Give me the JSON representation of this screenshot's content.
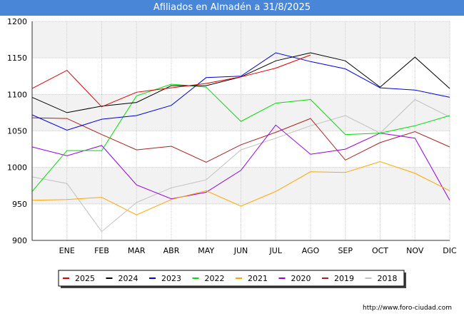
{
  "header": {
    "title": "Afiliados en Almadén a 31/8/2025"
  },
  "footer": {
    "source": "http://www.foro-ciudad.com"
  },
  "colors": {
    "title_bg": "#4a86d8",
    "band": "#f2f2f2",
    "grid": "#cccccc"
  },
  "chart_data": {
    "type": "line",
    "title": "Afiliados en Almadén a 31/8/2025",
    "xlabel": "",
    "ylabel": "",
    "ylim": [
      900,
      1200
    ],
    "yticks": [
      900,
      950,
      1000,
      1050,
      1100,
      1150,
      1200
    ],
    "categories": [
      "",
      "ENE",
      "FEB",
      "MAR",
      "ABR",
      "MAY",
      "JUN",
      "JUL",
      "AGO",
      "SEP",
      "OCT",
      "NOV",
      "DIC"
    ],
    "grid": true,
    "legend_position": "bottom",
    "series": [
      {
        "name": "2025",
        "color": "#dd0000",
        "values": [
          1108,
          1133,
          1083,
          1103,
          1109,
          1115,
          1124,
          1136,
          1154,
          null,
          null,
          null,
          null
        ]
      },
      {
        "name": "2024",
        "color": "#000000",
        "values": [
          1096,
          1075,
          1084,
          1089,
          1112,
          1112,
          1124,
          1146,
          1157,
          1146,
          1110,
          1151,
          1108
        ]
      },
      {
        "name": "2023",
        "color": "#0000dd",
        "values": [
          1072,
          1051,
          1066,
          1071,
          1085,
          1123,
          1125,
          1157,
          1145,
          1135,
          1109,
          1106,
          1096
        ]
      },
      {
        "name": "2022",
        "color": "#00dd00",
        "values": [
          967,
          1023,
          1023,
          1098,
          1114,
          1110,
          1063,
          1088,
          1093,
          1045,
          1047,
          1057,
          1071
        ]
      },
      {
        "name": "2021",
        "color": "#ffa500",
        "values": [
          955,
          956,
          959,
          935,
          956,
          968,
          947,
          967,
          994,
          993,
          1008,
          992,
          968
        ]
      },
      {
        "name": "2020",
        "color": "#9900dd",
        "values": [
          1028,
          1016,
          1030,
          976,
          957,
          966,
          996,
          1058,
          1018,
          1025,
          1047,
          1040,
          955
        ]
      },
      {
        "name": "2019",
        "color": "#aa2222",
        "values": [
          1068,
          1067,
          1045,
          1024,
          1029,
          1007,
          1031,
          1048,
          1067,
          1010,
          1034,
          1049,
          1028
        ]
      },
      {
        "name": "2018",
        "color": "#c0c0c0",
        "values": [
          987,
          978,
          912,
          952,
          972,
          983,
          1024,
          1040,
          1057,
          1071,
          1047,
          1093,
          1069
        ]
      }
    ]
  }
}
